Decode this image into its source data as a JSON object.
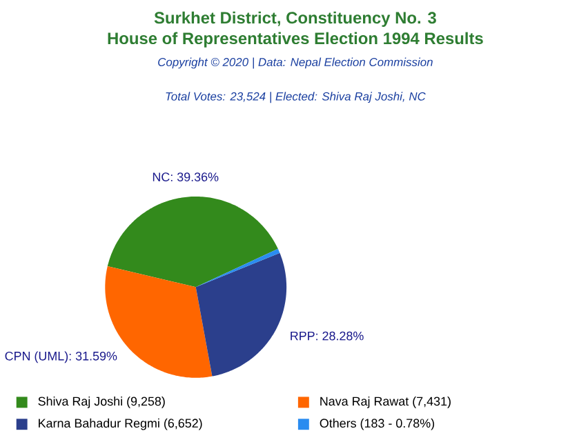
{
  "chart_data": {
    "type": "pie",
    "title": "Surkhet District, Constituency No. 3",
    "subtitle": "House of Representatives Election 1994 Results",
    "annotations": [
      "Copyright © 2020 | Data: Nepal Election Commission",
      "Total Votes: 23,524 | Elected: Shiva Raj Joshi, NC",
      "NC: 39.36%",
      "CPN (UML): 31.59%",
      "RPP: 28.28%"
    ],
    "categories": [
      "Shiva Raj Joshi (9,258)",
      "Nava Raj Rawat (7,431)",
      "Karna Bahadur Regmi (6,652)",
      "Others (183 - 0.78%)"
    ],
    "values": [
      9258,
      7431,
      6652,
      183
    ],
    "colors": [
      "#338a1c",
      "#ff6600",
      "#2b3f8c",
      "#2a8cf0"
    ],
    "legend": "bottom"
  }
}
